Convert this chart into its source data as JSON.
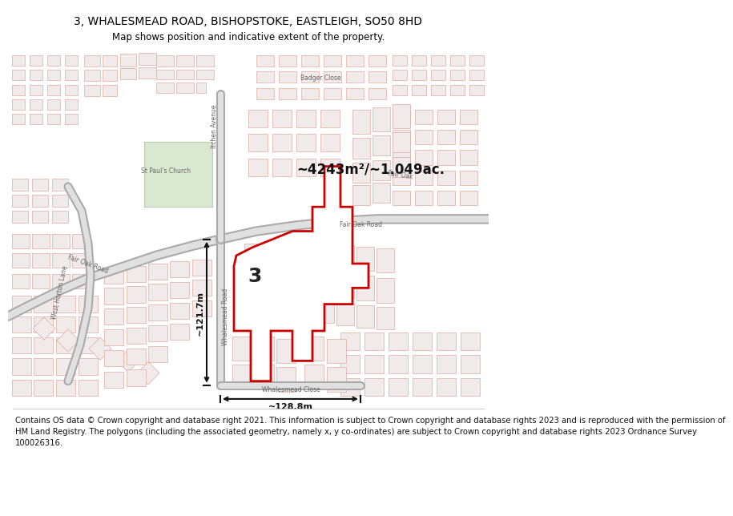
{
  "title": "3, WHALESMEAD ROAD, BISHOPSTOKE, EASTLEIGH, SO50 8HD",
  "subtitle": "Map shows position and indicative extent of the property.",
  "footer_line1": "Contains OS data © Crown copyright and database right 2021. This information is subject to Crown copyright and database rights 2023 and is reproduced with the permission of",
  "footer_line2": "HM Land Registry. The polygons (including the associated geometry, namely x, y co-ordinates) are subject to Crown copyright and database rights 2023 Ordnance Survey",
  "footer_line3": "100026316.",
  "area_label": "~4243m²/~1.049ac.",
  "width_label": "~128.8m",
  "height_label": "~121.7m",
  "plot_number": "3",
  "bg_color": "#ffffff",
  "map_bg": "#f7f0f0",
  "road_light": "#e8a898",
  "road_mid": "#d0b8b8",
  "road_dark": "#b0b0b0",
  "road_fill": "#e8e8e8",
  "highlight_color": "#cc0000",
  "green_fill": "#dae8d0",
  "bld_fill": "#e8e0e0",
  "bld_edge": "#d09090",
  "title_fontsize": 10,
  "subtitle_fontsize": 8.5,
  "footer_fontsize": 7.2,
  "road_label_fs": 5.5,
  "dim_fontsize": 8,
  "area_fontsize": 12,
  "number_fontsize": 18
}
